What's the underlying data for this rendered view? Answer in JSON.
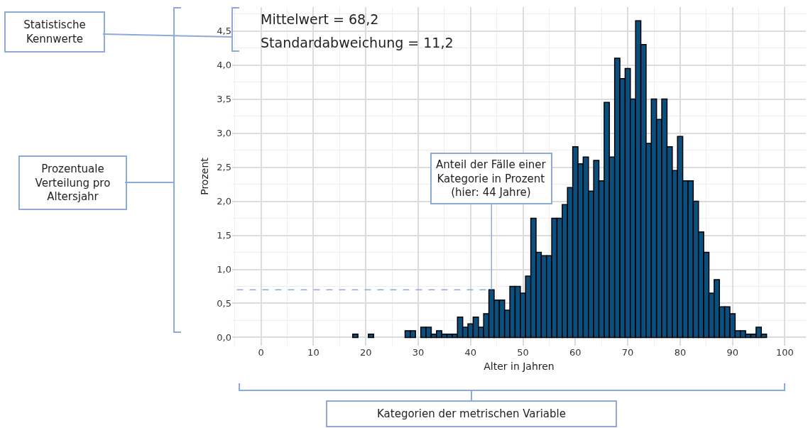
{
  "chart_data": {
    "type": "histogram",
    "xlabel": "Alter in Jahren",
    "ylabel": "Prozent",
    "bins": [
      17.5,
      18.5,
      19.5,
      20.5,
      21.5,
      22.5,
      23.5,
      24.5,
      25.5,
      26.5,
      27.5,
      28.5,
      29.5,
      30.5,
      31.5,
      32.5,
      33.5,
      34.5,
      35.5,
      36.5,
      37.5,
      38.5,
      39.5,
      40.5,
      41.5,
      42.5,
      43.5,
      44.5,
      45.5,
      46.5,
      47.5,
      48.5,
      49.5,
      50.5,
      51.5,
      52.5,
      53.5,
      54.5,
      55.5,
      56.5,
      57.5,
      58.5,
      59.5,
      60.5,
      61.5,
      62.5,
      63.5,
      64.5,
      65.5,
      66.5,
      67.5,
      68.5,
      69.5,
      70.5,
      71.5,
      72.5,
      73.5,
      74.5,
      75.5,
      76.5,
      77.5,
      78.5,
      79.5,
      80.5,
      81.5,
      82.5,
      83.5,
      84.5,
      85.5,
      86.5,
      87.5,
      88.5,
      89.5,
      90.5,
      91.5,
      92.5,
      93.5,
      94.5,
      95.5,
      96.5
    ],
    "values": [
      0.05,
      0,
      0,
      0.05,
      0,
      0,
      0,
      0,
      0,
      0,
      0.1,
      0.1,
      0,
      0.15,
      0.15,
      0.05,
      0.1,
      0.05,
      0.05,
      0.05,
      0.3,
      0.15,
      0.2,
      0.3,
      0.15,
      0.35,
      0.7,
      0.55,
      0.55,
      0.4,
      0.75,
      0.75,
      0.65,
      0.9,
      1.75,
      1.25,
      1.2,
      1.2,
      1.75,
      1.75,
      1.95,
      2.2,
      2.8,
      2.55,
      2.65,
      2.15,
      2.6,
      2.3,
      3.45,
      2.65,
      4.1,
      3.8,
      3.95,
      3.5,
      4.65,
      4.3,
      2.85,
      3.5,
      3.2,
      3.5,
      2.8,
      2.45,
      2.95,
      2.3,
      2.3,
      2.0,
      1.55,
      1.25,
      0.65,
      0.85,
      0.45,
      0.45,
      0.35,
      0.1,
      0.1,
      0.05,
      0.05,
      0.15,
      0.05
    ],
    "color": "#0b4f7f",
    "xlim": [
      -5.5,
      104
    ],
    "xticks": [
      0,
      10,
      20,
      30,
      40,
      50,
      60,
      70,
      80,
      90,
      100
    ],
    "ylim": [
      -0.12,
      4.85
    ],
    "yticks": [
      {
        "value": 0,
        "label": "0,0"
      },
      {
        "value": 0.5,
        "label": "0,5"
      },
      {
        "value": 1,
        "label": "1,0"
      },
      {
        "value": 1.5,
        "label": "1,5"
      },
      {
        "value": 2,
        "label": "2,0"
      },
      {
        "value": 2.5,
        "label": "2,5"
      },
      {
        "value": 3,
        "label": "3,0"
      },
      {
        "value": 3.5,
        "label": "3,5"
      },
      {
        "value": 4,
        "label": "4,0"
      },
      {
        "value": 4.5,
        "label": "4,5"
      }
    ],
    "grid": true,
    "ref_lines": [
      {
        "axis": "y",
        "value": 0.7,
        "color": "#8eaadb",
        "line_style": "dashed"
      }
    ],
    "annotations": [
      "Mittelwert = 68,2",
      "Standardabweichung = 11,2",
      "Statistische Kennwerte",
      "Prozentuale Verteilung pro Altersjahr",
      "Kategorien der metrischen Variable",
      {
        "text": "Anteil der Fälle einer Kategorie in Prozent (hier: 44 Jahre)",
        "x": 44,
        "y": 0.7
      }
    ]
  }
}
